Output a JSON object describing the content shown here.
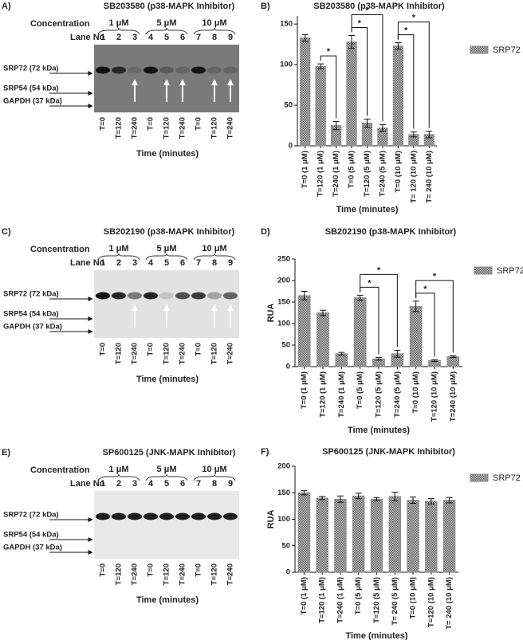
{
  "blots": [
    {
      "panel": "A)",
      "title": "SB203580 (p38-MAPK Inhibitor)",
      "concentration_label": "Concentration",
      "concentrations": [
        "1 μM",
        "5 μM",
        "10 μM"
      ],
      "lane_label": "Lane No",
      "lanes": [
        1,
        2,
        3,
        4,
        5,
        6,
        7,
        8,
        9
      ],
      "markers": [
        "SRP72 (72 kDa)",
        "SRP54 (54 kDa)",
        "GAPDH (37 kDa)"
      ],
      "times": [
        "T=0",
        "T=120",
        "T=240",
        "T=0",
        "T=120",
        "T=240",
        "T=0",
        "T=120",
        "T=240"
      ],
      "xlabel": "Time (minutes)"
    },
    {
      "panel": "C)",
      "title": "SB202190 (p38-MAPK Inhibitor)",
      "concentration_label": "Concentration",
      "concentrations": [
        "1 μM",
        "5 μM",
        "10 μM"
      ],
      "lane_label": "Lane No",
      "lanes": [
        1,
        2,
        3,
        4,
        5,
        6,
        7,
        8,
        9
      ],
      "markers": [
        "SRP72 (72 kDa)",
        "SRP54 (54 kDa)",
        "GAPDH (37 kDa)"
      ],
      "times": [
        "T=0",
        "T=120",
        "T=240",
        "T=0",
        "T=120",
        "T=240",
        "T=0",
        "T=120",
        "T=240"
      ],
      "xlabel": "Time (minutes)"
    },
    {
      "panel": "E)",
      "title": "SP600125 (JNK-MAPK Inhibitor)",
      "concentration_label": "Concentration",
      "concentrations": [
        "1 μM",
        "5 μM",
        "10 μM"
      ],
      "lane_label": "Lane No",
      "lanes": [
        1,
        2,
        3,
        4,
        5,
        6,
        7,
        8,
        9
      ],
      "markers": [
        "SRP72 (72 kDa)",
        "SRP54 (54 kDa)",
        "GAPDH (37 kDa)"
      ],
      "times": [
        "T=0",
        "T=120",
        "T=240",
        "T=0",
        "T=120",
        "T=240",
        "T=0",
        "T=120",
        "T=240"
      ],
      "xlabel": "Time (minutes)"
    }
  ],
  "chart_data": [
    {
      "type": "bar",
      "panel": "B)",
      "title": "SB203580 (p38-MAPK Inhibitor)",
      "xlabel": "Time (minutes)",
      "categories": [
        "T=0 (1 μM)",
        "T=120 (1 μM)",
        "T=240 (1 μM)",
        "T=0 (5 μM)",
        "T=120 (5 μM)",
        "T=240 (5 μM)",
        "T=0 (10 μM)",
        "T= 120 (10 μM)",
        "T= 240 (10 μM)"
      ],
      "series": [
        {
          "name": "SRP72",
          "color": "#8a8a8a",
          "values": [
            133,
            98,
            25,
            128,
            28,
            22,
            123,
            14,
            14
          ],
          "errors": [
            4,
            3,
            5,
            8,
            5,
            4,
            4,
            3,
            4
          ]
        }
      ],
      "ylim": [
        0,
        160
      ],
      "yticks": [
        0,
        50,
        100,
        150
      ],
      "legend": "right",
      "significance": [
        {
          "bars": [
            1,
            2
          ],
          "label": "*"
        },
        {
          "bars": [
            3,
            4
          ],
          "label": "*"
        },
        {
          "bars": [
            3,
            5
          ],
          "label": "*"
        },
        {
          "bars": [
            6,
            7
          ],
          "label": "*"
        },
        {
          "bars": [
            6,
            8
          ],
          "label": "*"
        }
      ]
    },
    {
      "type": "bar",
      "panel": "D)",
      "title": "SB202190 (p38-MAPK Inhibitor)",
      "xlabel": "Time (minutes)",
      "ylabel": "RUA",
      "categories": [
        "T=0 (1 μM)",
        "T=120 (1 μM)",
        "T=240 (1 μM)",
        "T=0 (5 μM)",
        "T=120 (5 μM)",
        "T=240 (5 μM)",
        "T=0 (10 μM)",
        "T=120 (10 μM)",
        "T=240 (10 μM)"
      ],
      "series": [
        {
          "name": "SRP72",
          "color": "#8a8a8a",
          "values": [
            165,
            125,
            30,
            160,
            18,
            30,
            140,
            14,
            23
          ],
          "errors": [
            10,
            6,
            3,
            6,
            3,
            8,
            12,
            2,
            2
          ]
        }
      ],
      "ylim": [
        0,
        250
      ],
      "yticks": [
        0,
        50,
        100,
        150,
        200,
        250
      ],
      "legend": "right",
      "significance": [
        {
          "bars": [
            3,
            4
          ],
          "label": "*"
        },
        {
          "bars": [
            3,
            5
          ],
          "label": "*"
        },
        {
          "bars": [
            6,
            7
          ],
          "label": "*"
        },
        {
          "bars": [
            6,
            8
          ],
          "label": "*"
        }
      ]
    },
    {
      "type": "bar",
      "panel": "F)",
      "title": "SP600125 (JNK-MAPK Inhibitor)",
      "xlabel": "Time (minutes)",
      "ylabel": "RUA",
      "categories": [
        "T=0 (1 μM)",
        "T=120 (1 μM)",
        "T=240 (1 μM)",
        "T=0 (5 μM)",
        "T=120 (5 μM)",
        "T= 240 (5 μM)",
        "T=0 (10 μM)",
        "T=120 (10 μM)",
        "T= 240 (10 μM)"
      ],
      "series": [
        {
          "name": "SRP72",
          "color": "#8a8a8a",
          "values": [
            150,
            140,
            138,
            144,
            138,
            143,
            136,
            134,
            136
          ],
          "errors": [
            4,
            3,
            6,
            5,
            3,
            8,
            6,
            5,
            5
          ]
        }
      ],
      "ylim": [
        0,
        200
      ],
      "yticks": [
        0,
        50,
        100,
        150,
        200
      ],
      "legend": "right"
    }
  ]
}
